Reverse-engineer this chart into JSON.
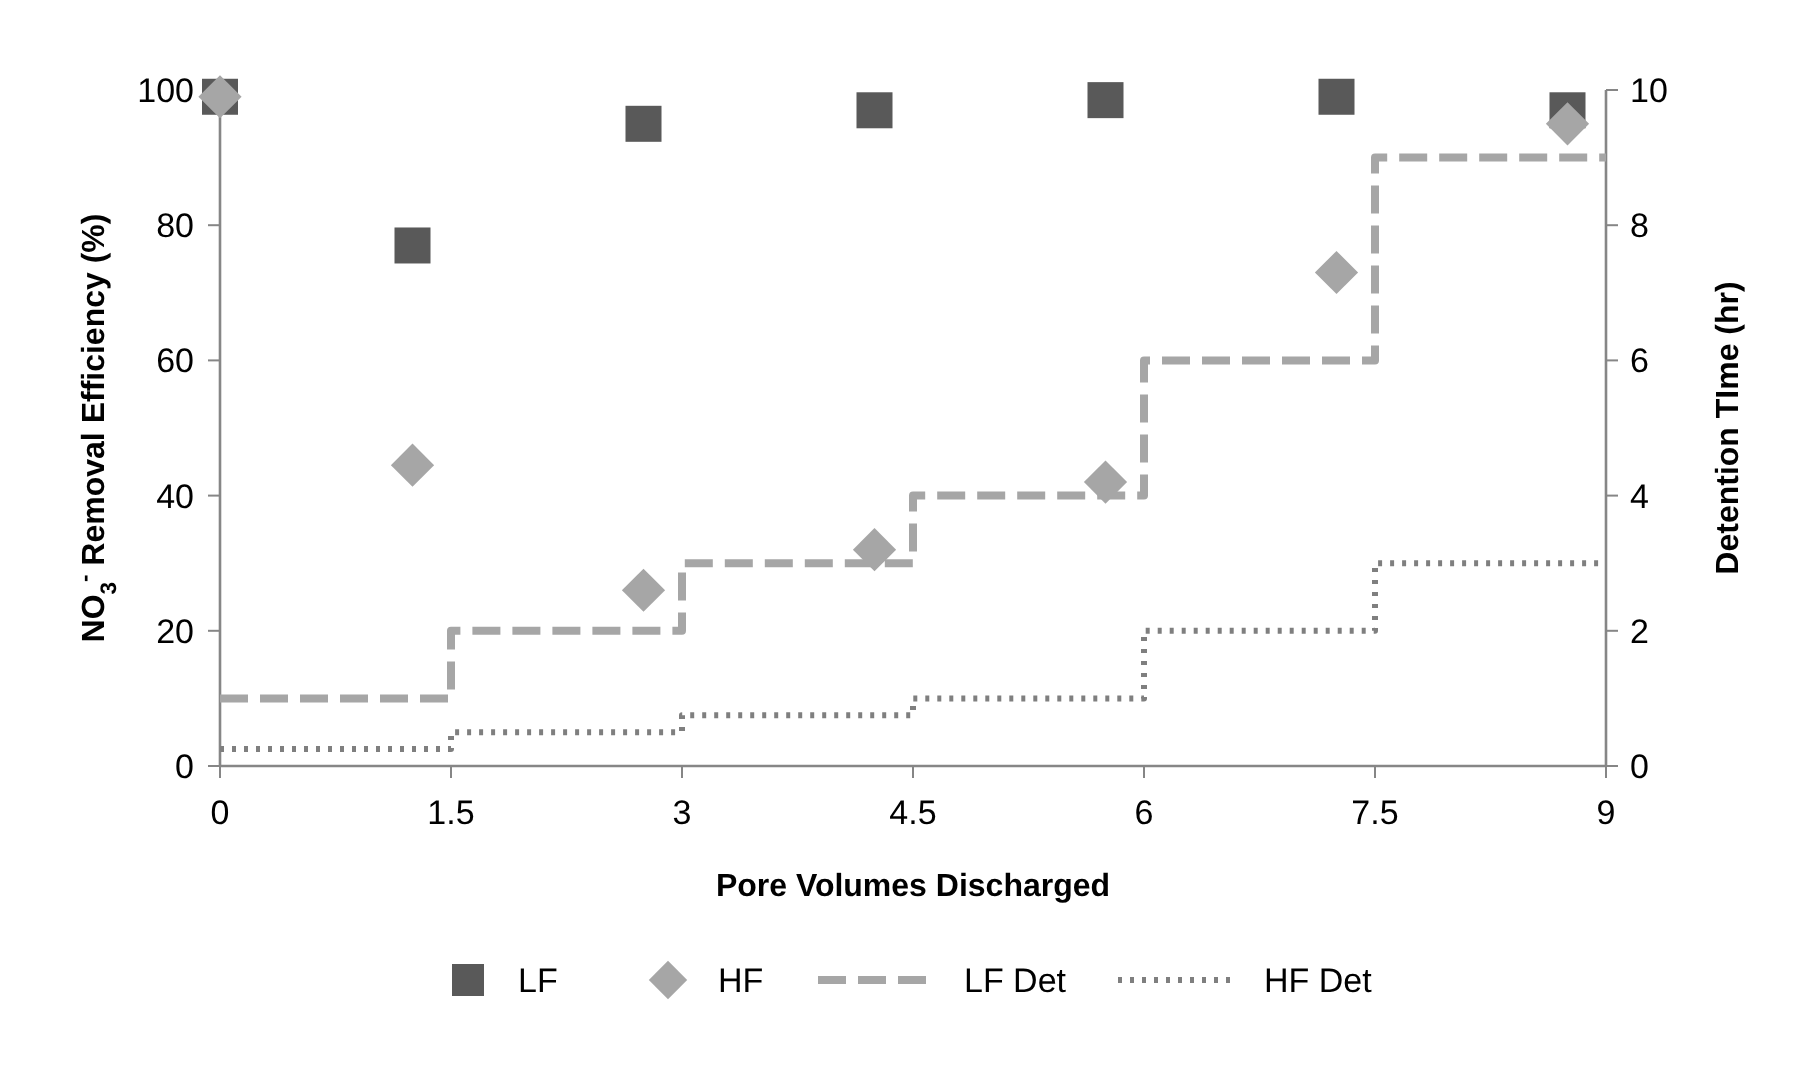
{
  "chart_data": {
    "type": "scatter",
    "xlabel": "Pore Volumes Discharged",
    "ylabel": "NO$_{3}$$^{-}$ Removal Efficiency (%)",
    "y2label": "Detention TIme (hr)",
    "xlim": [
      0,
      9
    ],
    "xticks": [
      0,
      1.5,
      3,
      4.5,
      6,
      7.5,
      9
    ],
    "ylim": [
      0,
      100
    ],
    "yticks": [
      0,
      20,
      40,
      60,
      80,
      100
    ],
    "y2lim": [
      0,
      10
    ],
    "y2ticks": [
      0,
      2,
      4,
      6,
      8,
      10
    ],
    "grid": false,
    "legend": "bottom",
    "series": [
      {
        "name": "LF",
        "marker": "square",
        "color": "#595959",
        "x": [
          0,
          1.25,
          2.75,
          4.25,
          5.75,
          7.25,
          8.75
        ],
        "values": [
          99,
          77,
          95,
          97,
          98.5,
          99,
          97
        ]
      },
      {
        "name": "HF",
        "marker": "diamond",
        "color": "#a6a6a6",
        "x": [
          0,
          1.25,
          2.75,
          4.25,
          5.75,
          7.25,
          8.75
        ],
        "values": [
          99,
          44.5,
          26,
          32,
          42,
          73,
          95
        ]
      },
      {
        "name": "LF Det",
        "type": "step",
        "axis": "y2",
        "line_style": "dashed",
        "color": "#a6a6a6",
        "x": [
          0,
          1.5,
          3,
          4.5,
          6,
          7.5,
          9
        ],
        "values": [
          1,
          2,
          3,
          4,
          6,
          9,
          9
        ]
      },
      {
        "name": "HF Det",
        "type": "step",
        "axis": "y2",
        "line_style": "dotted",
        "color": "#7f7f7f",
        "x": [
          0,
          1.5,
          3,
          4.5,
          6,
          7.5,
          9
        ],
        "values": [
          0.25,
          0.5,
          0.75,
          1,
          2,
          3,
          3
        ]
      }
    ]
  }
}
